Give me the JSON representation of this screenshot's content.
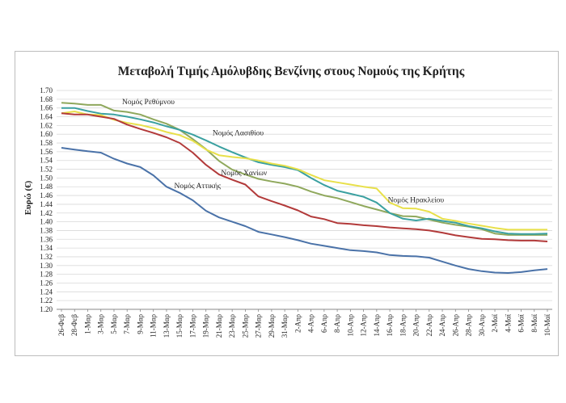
{
  "chart_data": {
    "type": "line",
    "title": "Μεταβολή Τιμής Αμόλυβδης Βενζίνης στους Νομούς της Κρήτης",
    "ylabel": "Ευρώ (€)",
    "xlabel": "",
    "ylim": [
      1.2,
      1.7
    ],
    "ytick_step": 0.02,
    "grid": "horizontal",
    "legend": "inline labels",
    "x_labels": [
      "26-Φεβ",
      "28-Φεβ",
      "1-Μαρ",
      "3-Μαρ",
      "5-Μαρ",
      "7-Μαρ",
      "9-Μαρ",
      "11-Μαρ",
      "13-Μαρ",
      "15-Μαρ",
      "17-Μαρ",
      "19-Μαρ",
      "21-Μαρ",
      "23-Μαρ",
      "25-Μαρ",
      "27-Μαρ",
      "29-Μαρ",
      "31-Μαρ",
      "2-Απρ",
      "4-Απρ",
      "6-Απρ",
      "8-Απρ",
      "10-Απρ",
      "12-Απρ",
      "14-Απρ",
      "16-Απρ",
      "18-Απρ",
      "20-Απρ",
      "22-Απρ",
      "24-Απρ",
      "26-Απρ",
      "28-Απρ",
      "30-Απρ",
      "2-Μαϊ",
      "4-Μαϊ",
      "6-Μαϊ",
      "8-Μαϊ",
      "10-Μαϊ"
    ],
    "series": [
      {
        "name": "Νομός Ρεθύμνου",
        "color": "#8fa85c",
        "values": [
          1.672,
          1.67,
          1.667,
          1.667,
          1.654,
          1.651,
          1.645,
          1.634,
          1.624,
          1.61,
          1.589,
          1.566,
          1.539,
          1.519,
          1.508,
          1.498,
          1.492,
          1.487,
          1.48,
          1.469,
          1.46,
          1.454,
          1.445,
          1.436,
          1.428,
          1.42,
          1.413,
          1.412,
          1.405,
          1.398,
          1.393,
          1.389,
          1.383,
          1.373,
          1.37,
          1.37,
          1.37,
          1.37
        ]
      },
      {
        "name": "Νομός Λασιθίου",
        "color": "#3aa0a0",
        "values": [
          1.66,
          1.66,
          1.653,
          1.647,
          1.645,
          1.64,
          1.634,
          1.627,
          1.618,
          1.61,
          1.599,
          1.586,
          1.572,
          1.559,
          1.547,
          1.536,
          1.53,
          1.525,
          1.518,
          1.5,
          1.484,
          1.471,
          1.464,
          1.457,
          1.444,
          1.42,
          1.407,
          1.403,
          1.407,
          1.402,
          1.398,
          1.39,
          1.385,
          1.378,
          1.373,
          1.372,
          1.372,
          1.373
        ]
      },
      {
        "name": "Νομός Ηρακλείου",
        "color": "#e8e04a",
        "values": [
          1.648,
          1.652,
          1.645,
          1.644,
          1.633,
          1.626,
          1.621,
          1.614,
          1.605,
          1.598,
          1.585,
          1.565,
          1.552,
          1.548,
          1.545,
          1.54,
          1.533,
          1.528,
          1.52,
          1.507,
          1.495,
          1.49,
          1.485,
          1.48,
          1.476,
          1.444,
          1.431,
          1.43,
          1.423,
          1.407,
          1.402,
          1.396,
          1.391,
          1.386,
          1.382,
          1.382,
          1.382,
          1.382
        ]
      },
      {
        "name": "Νομός Χανίων",
        "color": "#b23a3a",
        "values": [
          1.648,
          1.645,
          1.645,
          1.64,
          1.635,
          1.622,
          1.612,
          1.603,
          1.593,
          1.58,
          1.558,
          1.53,
          1.508,
          1.496,
          1.485,
          1.458,
          1.447,
          1.437,
          1.426,
          1.412,
          1.406,
          1.397,
          1.395,
          1.392,
          1.39,
          1.387,
          1.385,
          1.383,
          1.38,
          1.375,
          1.369,
          1.365,
          1.361,
          1.36,
          1.358,
          1.357,
          1.357,
          1.355
        ]
      },
      {
        "name": "Νομός Αττικής",
        "color": "#4a72a8",
        "values": [
          1.569,
          1.565,
          1.561,
          1.558,
          1.544,
          1.533,
          1.525,
          1.506,
          1.48,
          1.466,
          1.449,
          1.425,
          1.41,
          1.4,
          1.39,
          1.377,
          1.371,
          1.365,
          1.358,
          1.35,
          1.345,
          1.34,
          1.335,
          1.333,
          1.33,
          1.324,
          1.322,
          1.321,
          1.318,
          1.309,
          1.3,
          1.292,
          1.287,
          1.284,
          1.283,
          1.285,
          1.289,
          1.292
        ]
      }
    ]
  }
}
